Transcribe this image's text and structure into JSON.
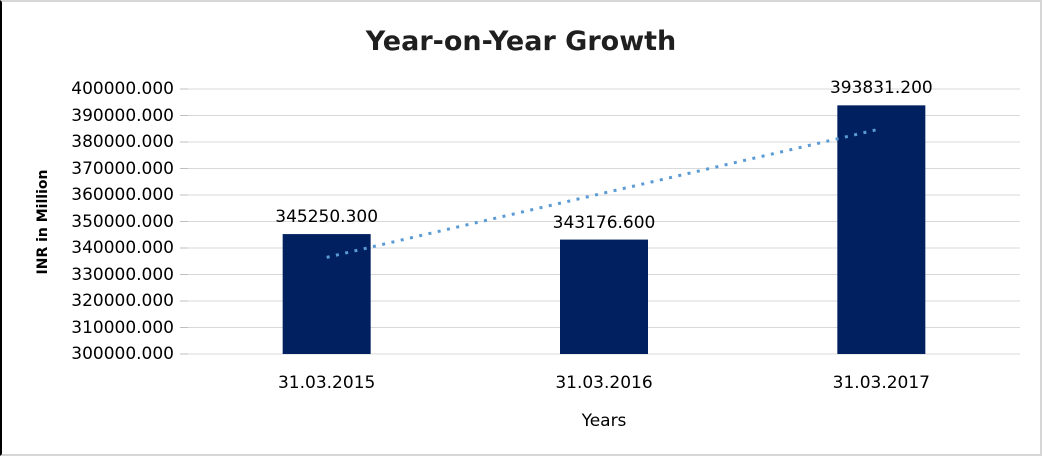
{
  "chart_data": {
    "type": "bar",
    "title": "Year-on-Year Growth",
    "categories": [
      "31.03.2015",
      "31.03.2016",
      "31.03.2017"
    ],
    "values": [
      345250.3,
      343176.6,
      393831.2
    ],
    "data_labels": [
      "345250.300",
      "343176.600",
      "393831.200"
    ],
    "xlabel": "Years",
    "ylabel": "INR in Million",
    "ylim": [
      300000,
      400000
    ],
    "ytick_step": 10000,
    "ytick_labels": [
      "400000.000",
      "390000.000",
      "380000.000",
      "370000.000",
      "360000.000",
      "350000.000",
      "340000.000",
      "330000.000",
      "320000.000",
      "310000.000",
      "300000.000"
    ],
    "grid": true,
    "legend": "none",
    "bar_color": "#002060",
    "gridline_color": "#d9d9d9",
    "tick_color": "#bfbfbf",
    "text_color": "#000000",
    "trendline": {
      "type": "linear",
      "style": "dotted",
      "color": "#5b9bd5"
    }
  }
}
